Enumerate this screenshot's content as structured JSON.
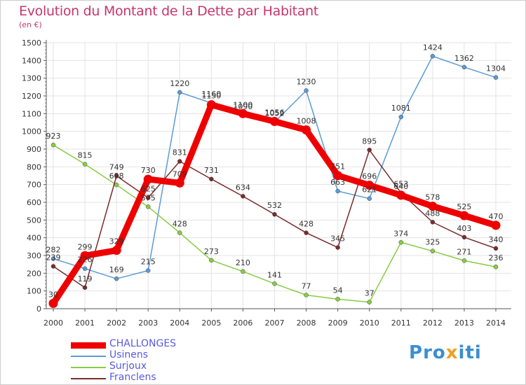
{
  "title": "Evolution du Montant de la Dette par Habitant",
  "subtitle": "(en €)",
  "chart_data": {
    "type": "line",
    "x": [
      "2000",
      "2001",
      "2002",
      "2003",
      "2004",
      "2005",
      "2006",
      "2007",
      "2008",
      "2009",
      "2010",
      "2011",
      "2012",
      "2013",
      "2014"
    ],
    "ylim": [
      0,
      1500
    ],
    "yticks": [
      0,
      100,
      200,
      300,
      400,
      500,
      600,
      700,
      800,
      900,
      1000,
      1100,
      1200,
      1300,
      1400,
      1500
    ],
    "grid": true,
    "legend_position": "bottom-left",
    "series": [
      {
        "name": "CHALLONGES",
        "color": "#ee0000",
        "values": [
          30,
          299,
          329,
          730,
          709,
          1150,
          1100,
          1056,
          1008,
          751,
          696,
          640,
          578,
          525,
          470
        ]
      },
      {
        "name": "Usinens",
        "color": "#5b9bd5",
        "values": [
          282,
          226,
          169,
          215,
          1220,
          1160,
          1090,
          1052,
          1230,
          663,
          621,
          1081,
          1424,
          1362,
          1304
        ]
      },
      {
        "name": "Surjoux",
        "color": "#88cc44",
        "values": [
          923,
          815,
          698,
          575,
          428,
          273,
          210,
          141,
          77,
          54,
          37,
          374,
          325,
          271,
          236
        ]
      },
      {
        "name": "Franclens",
        "color": "#7a2b2b",
        "values": [
          239,
          119,
          749,
          625,
          831,
          731,
          634,
          532,
          428,
          345,
          895,
          653,
          488,
          403,
          340
        ]
      }
    ]
  },
  "logo": {
    "letters": [
      "P",
      "r",
      "o",
      "x",
      "i",
      "t",
      "i"
    ],
    "colors": [
      "#3a8fd0",
      "#3a8fd0",
      "#3a8fd0",
      "#f0a020",
      "#3a8fd0",
      "#3a8fd0",
      "#3a8fd0"
    ]
  }
}
